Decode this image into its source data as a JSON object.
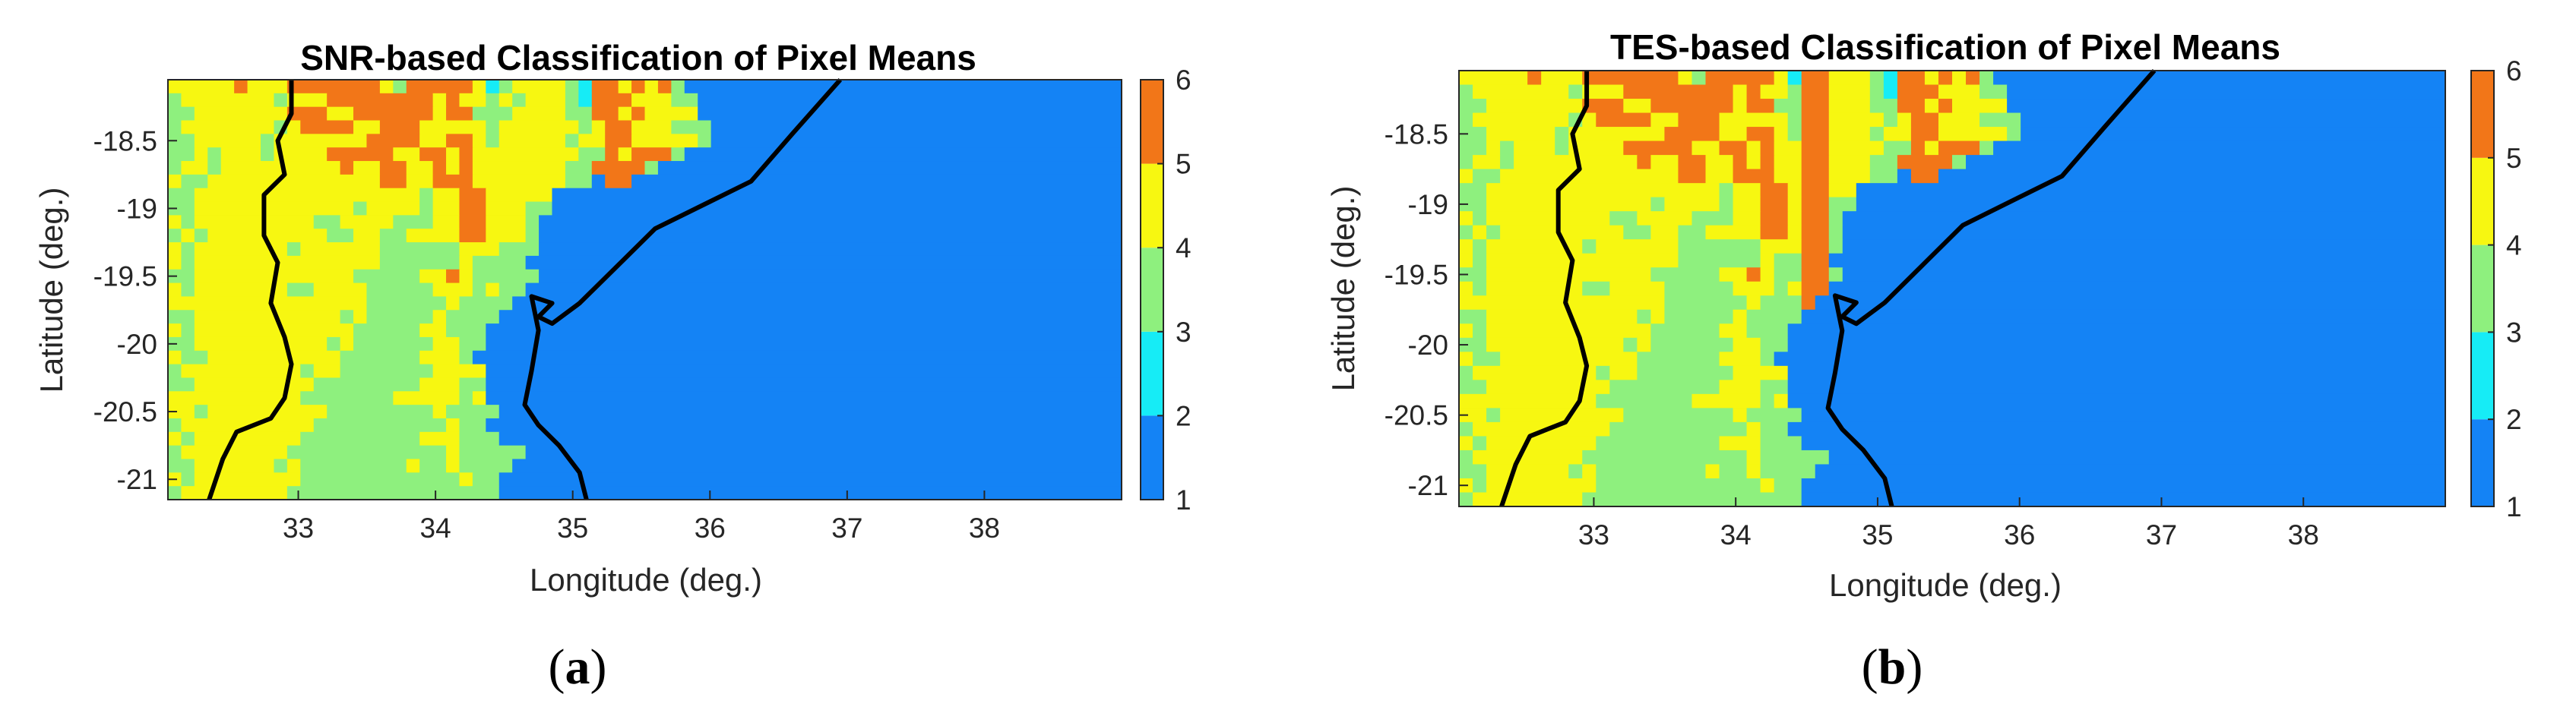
{
  "figure": {
    "panels": [
      {
        "caption_open": "(",
        "caption_letter": "a",
        "caption_close": ")"
      },
      {
        "caption_open": "(",
        "caption_letter": "b",
        "caption_close": ")"
      }
    ]
  },
  "chart_data": [
    {
      "type": "heatmap",
      "title": "SNR-based Classification of Pixel Means",
      "xlabel": "Longitude (deg.)",
      "ylabel": "Latitude (deg.)",
      "xlim": [
        32.05,
        39.0
      ],
      "ylim": [
        -21.15,
        -18.05
      ],
      "x_ticks": [
        33,
        34,
        35,
        36,
        37,
        38
      ],
      "x_tick_labels": [
        "33",
        "34",
        "35",
        "36",
        "37",
        "38"
      ],
      "y_ticks": [
        -18.5,
        -19,
        -19.5,
        -20,
        -20.5,
        -21
      ],
      "y_tick_labels": [
        "-18.5",
        "-19",
        "-19.5",
        "-20",
        "-20.5",
        "-21"
      ],
      "colorbar": {
        "range": [
          1,
          6
        ],
        "ticks": [
          1,
          2,
          3,
          4,
          5,
          6
        ],
        "tick_labels": [
          "1",
          "2",
          "3",
          "4",
          "5",
          "6"
        ],
        "classes": [
          {
            "from": 1,
            "to": 2,
            "color": "#1483f5"
          },
          {
            "from": 2,
            "to": 3,
            "color": "#16ecf6"
          },
          {
            "from": 3,
            "to": 4,
            "color": "#8ef07e"
          },
          {
            "from": 4,
            "to": 5,
            "color": "#f7f711"
          },
          {
            "from": 5,
            "to": 6,
            "color": "#f27618"
          }
        ]
      },
      "coastline": [
        [
          36.95,
          -18.05
        ],
        [
          36.6,
          -18.45
        ],
        [
          36.3,
          -18.8
        ],
        [
          36.0,
          -18.95
        ],
        [
          35.6,
          -19.15
        ],
        [
          35.3,
          -19.45
        ],
        [
          35.05,
          -19.7
        ],
        [
          34.85,
          -19.85
        ],
        [
          34.75,
          -19.8
        ],
        [
          34.85,
          -19.7
        ],
        [
          34.7,
          -19.65
        ],
        [
          34.75,
          -19.9
        ],
        [
          34.7,
          -20.2
        ],
        [
          34.65,
          -20.45
        ],
        [
          34.75,
          -20.6
        ],
        [
          34.9,
          -20.75
        ],
        [
          35.05,
          -20.95
        ],
        [
          35.1,
          -21.15
        ]
      ],
      "border": [
        [
          32.95,
          -18.05
        ],
        [
          32.95,
          -18.3
        ],
        [
          32.85,
          -18.5
        ],
        [
          32.9,
          -18.75
        ],
        [
          32.75,
          -18.9
        ],
        [
          32.75,
          -19.2
        ],
        [
          32.85,
          -19.4
        ],
        [
          32.8,
          -19.7
        ],
        [
          32.9,
          -19.95
        ],
        [
          32.95,
          -20.15
        ],
        [
          32.9,
          -20.4
        ],
        [
          32.8,
          -20.55
        ],
        [
          32.55,
          -20.65
        ],
        [
          32.45,
          -20.85
        ],
        [
          32.35,
          -21.15
        ]
      ],
      "grid_cols": 72,
      "grid_rows": 31,
      "grid_values": [
        "444445444555555543555554234444325545453111111111111111111111111111111111",
        "344444443444555555554544343444325554443311111111111111111111111111111111",
        "334444444555445555554553334444335545444411111111111111111111111111111111",
        "344444443455554455544444344444434554443331111111111111111111111111111111",
        "334444434444444555544554344444344554444431111111111111111111111111111111",
        "334344434444555554455454444444433545553111111111111111111111111111111111",
        "344344444444454455445454444444335555311111111111111111111111111111111111",
        "433444444444444455445554444444331551111111111111111111111111111111111111",
        "334444444444444444434455444441111111111111111111111111111111111111111111",
        "334444444444443444434455444331111111111111111111111111111111111111111111",
        "434444444443344443334455444311111111111111111111111111111111111111111111",
        "343444444444334433444455444311111111111111111111111111111111111111111111",
        "434444444344444433333344433311111111111111111111111111111111111111111111",
        "434444444444444433333343333111111111111111111111111111111111111111111111",
        "334444444444443333344543333311111111111111111111111111111111111111111111",
        "434444444334444333334443433111111111111111111111111111111111111111111111",
        "444444444444444333333433331111111111111111111111111111111111111111111111",
        "334444444444434333334333311111111111111111111111111111111111111111111111",
        "434444444444443333344333111111111111111111111111111111111111111111111111",
        "334444444444343333334433111111111111111111111111111111111111111111111111",
        "433444444444433333344431111111111111111111111111111111111111111111111111",
        "344444444434433333334444111111111111111111111111111111111111111111111111",
        "334444444443333333344433111111111111111111111111111111111111111111111111",
        "444444444433333334444434111111111111111111111111111111111111111111111111",
        "443444444444333333334333311111111111111111111111111111111111111111111111",
        "344444444443333333333433111111111111111111111111111111111111111111111111",
        "434444444433333333344433311111111111111111111111111111111111111111111111",
        "344444444333333333333433333111111111111111111111111111111111111111111111",
        "334444443433333333433433331111111111111111111111111111111111111111111111",
        "434444444433333333333343311111111111111111111111111111111111111111111111",
        "344444444333333333333333311111111111111111111111111111111111111111111111"
      ]
    },
    {
      "type": "heatmap",
      "title": "TES-based Classification of Pixel Means",
      "xlabel": "Longitude (deg.)",
      "ylabel": "Latitude (deg.)",
      "xlim": [
        32.05,
        39.0
      ],
      "ylim": [
        -21.15,
        -18.05
      ],
      "x_ticks": [
        33,
        34,
        35,
        36,
        37,
        38
      ],
      "x_tick_labels": [
        "33",
        "34",
        "35",
        "36",
        "37",
        "38"
      ],
      "y_ticks": [
        -18.5,
        -19,
        -19.5,
        -20,
        -20.5,
        -21
      ],
      "y_tick_labels": [
        "-18.5",
        "-19",
        "-19.5",
        "-20",
        "-20.5",
        "-21"
      ],
      "colorbar": {
        "range": [
          1,
          6
        ],
        "ticks": [
          1,
          2,
          3,
          4,
          5,
          6
        ],
        "tick_labels": [
          "1",
          "2",
          "3",
          "4",
          "5",
          "6"
        ],
        "classes": [
          {
            "from": 1,
            "to": 2,
            "color": "#1483f5"
          },
          {
            "from": 2,
            "to": 3,
            "color": "#16ecf6"
          },
          {
            "from": 3,
            "to": 4,
            "color": "#8ef07e"
          },
          {
            "from": 4,
            "to": 5,
            "color": "#f7f711"
          },
          {
            "from": 5,
            "to": 6,
            "color": "#f27618"
          }
        ]
      },
      "coastline": [
        [
          36.95,
          -18.05
        ],
        [
          36.6,
          -18.45
        ],
        [
          36.3,
          -18.8
        ],
        [
          36.0,
          -18.95
        ],
        [
          35.6,
          -19.15
        ],
        [
          35.3,
          -19.45
        ],
        [
          35.05,
          -19.7
        ],
        [
          34.85,
          -19.85
        ],
        [
          34.75,
          -19.8
        ],
        [
          34.85,
          -19.7
        ],
        [
          34.7,
          -19.65
        ],
        [
          34.75,
          -19.9
        ],
        [
          34.7,
          -20.2
        ],
        [
          34.65,
          -20.45
        ],
        [
          34.75,
          -20.6
        ],
        [
          34.9,
          -20.75
        ],
        [
          35.05,
          -20.95
        ],
        [
          35.1,
          -21.15
        ]
      ],
      "border": [
        [
          32.95,
          -18.05
        ],
        [
          32.95,
          -18.3
        ],
        [
          32.85,
          -18.5
        ],
        [
          32.9,
          -18.75
        ],
        [
          32.75,
          -18.9
        ],
        [
          32.75,
          -19.2
        ],
        [
          32.85,
          -19.4
        ],
        [
          32.8,
          -19.7
        ],
        [
          32.9,
          -19.95
        ],
        [
          32.95,
          -20.15
        ],
        [
          32.9,
          -20.4
        ],
        [
          32.8,
          -20.55
        ],
        [
          32.55,
          -20.65
        ],
        [
          32.45,
          -20.85
        ],
        [
          32.35,
          -21.15
        ]
      ],
      "grid_cols": 72,
      "grid_rows": 31,
      "grid_values": [
        "444445444555555543555554255444325545453111111111111111111111111111111111",
        "344444443444555555554544355444325554443311111111111111111111111111111111",
        "334444444555445555554553355444335545444411111111111111111111111111111111",
        "344444443455554455544444355444434554443331111111111111111111111111111111",
        "334444434444444555544554355444344554444431111111111111111111111111111111",
        "334344434444555554455454455444433545553111111111111111111111111111111111",
        "344344444444454455445454455444335555311111111111111111111111111111111111",
        "433444444444444455445554455444331551111111111111111111111111111111111111",
        "334444444444444444434455455441111111111111111111111111111111111111111111",
        "334444444444443444434455455331111111111111111111111111111111111111111111",
        "434444444443344443334455455311111111111111111111111111111111111111111111",
        "343444444444334433444455455311111111111111111111111111111111111111111111",
        "434444444344444433333344455311111111111111111111111111111111111111111111",
        "434444444444444433333343355111111111111111111111111111111111111111111111",
        "334444444444443333344543355311111111111111111111111111111111111111111111",
        "434444444334444333334443455111111111111111111111111111111111111111111111",
        "444444444444444333333433351111111111111111111111111111111111111111111111",
        "334444444444434333334333311111111111111111111111111111111111111111111111",
        "434444444444443333344333111111111111111111111111111111111111111111111111",
        "334444444444343333334433111111111111111111111111111111111111111111111111",
        "433444444444433333344431111111111111111111111111111111111111111111111111",
        "344444444434433333334444111111111111111111111111111111111111111111111111",
        "334444444443333333344433111111111111111111111111111111111111111111111111",
        "444444444433333334444434111111111111111111111111111111111111111111111111",
        "443444444444333333334333311111111111111111111111111111111111111111111111",
        "344444444443333333333433111111111111111111111111111111111111111111111111",
        "434444444433333333344433311111111111111111111111111111111111111111111111",
        "344444444333333333333433333111111111111111111111111111111111111111111111",
        "334444443433333333433433331111111111111111111111111111111111111111111111",
        "434444444433333333333343311111111111111111111111111111111111111111111111",
        "344444444333333333333333311111111111111111111111111111111111111111111111"
      ]
    }
  ]
}
